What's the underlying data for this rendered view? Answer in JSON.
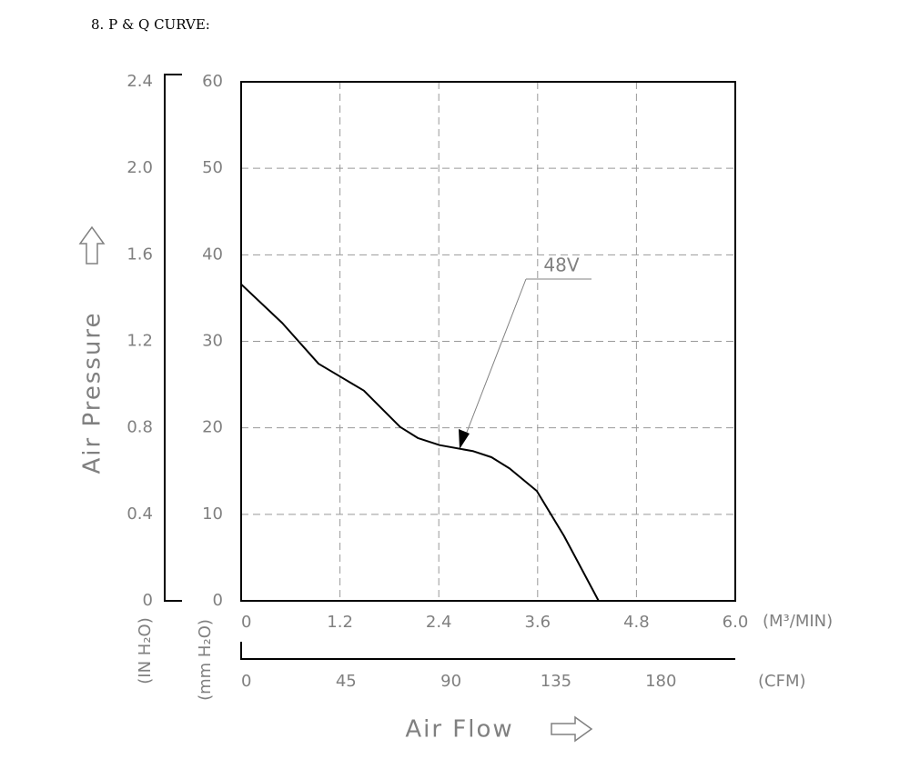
{
  "chart_data": {
    "type": "line",
    "title": "8. P & Q CURVE:",
    "x_label": "Air Flow",
    "y_label": "Air Pressure",
    "x_unit": "(M³/MIN)",
    "x2_unit": "(CFM)",
    "y_unit": "(mm H₂O)",
    "y2_unit": "(IN H₂O)",
    "xlim": [
      0,
      6
    ],
    "xticks": [
      0,
      1.2,
      2.4,
      3.6,
      4.8,
      {
        "value": 6,
        "label": "6.0"
      }
    ],
    "x2lim": [
      0,
      211.9
    ],
    "x2ticks": [
      0,
      45,
      90,
      135,
      180
    ],
    "ylim": [
      0,
      60
    ],
    "yticks": [
      0,
      10,
      20,
      30,
      40,
      50,
      60
    ],
    "y2lim": [
      0,
      2.4
    ],
    "y2ticks": [
      0,
      0.4,
      0.8,
      1.2,
      1.6,
      {
        "value": 2,
        "label": "2.0"
      },
      2.4
    ],
    "grid": true,
    "series": [
      {
        "name": "48V",
        "color": "#000000",
        "x": [
          0,
          0.5,
          0.94,
          1.49,
          1.93,
          2.15,
          2.41,
          2.82,
          3.04,
          3.26,
          3.59,
          3.92,
          4.34
        ],
        "values": [
          36.6,
          32.1,
          27.4,
          24.3,
          20.1,
          18.8,
          18.0,
          17.3,
          16.6,
          15.3,
          12.7,
          7.5,
          0
        ]
      }
    ]
  }
}
